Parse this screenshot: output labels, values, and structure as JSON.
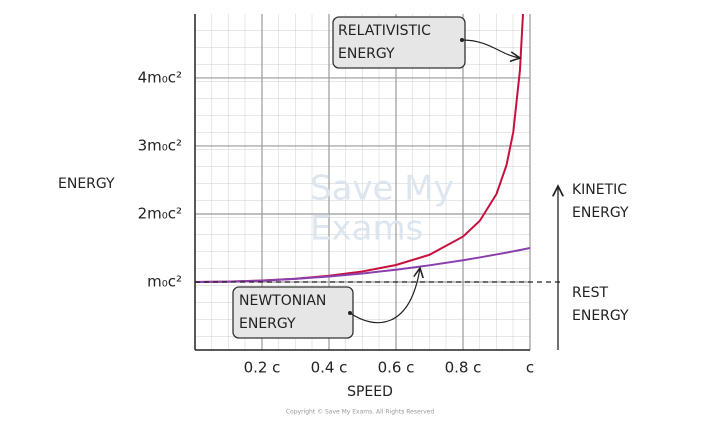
{
  "chart_data": {
    "type": "line",
    "x_label": "SPEED",
    "y_label": "ENERGY",
    "xlim": [
      0,
      1
    ],
    "ylim": [
      0,
      4.94
    ],
    "xticks": [
      {
        "value": 0.2,
        "label": "0.2 c"
      },
      {
        "value": 0.4,
        "label": "0.4 c"
      },
      {
        "value": 0.6,
        "label": "0.6 c"
      },
      {
        "value": 0.8,
        "label": "0.8 c"
      },
      {
        "value": 1,
        "label": "c"
      }
    ],
    "yticks": [
      {
        "value": 1,
        "label": "m₀c²"
      },
      {
        "value": 2,
        "label": "2m₀c²"
      },
      {
        "value": 3,
        "label": "3m₀c²"
      },
      {
        "value": 4,
        "label": "4m₀c²"
      }
    ],
    "grid": true,
    "x": [
      0,
      0.1,
      0.2,
      0.3,
      0.4,
      0.5,
      0.6,
      0.7,
      0.8,
      0.85,
      0.9,
      0.93,
      0.95,
      0.97,
      0.98,
      1
    ],
    "series": [
      {
        "name": "RELATIVISTIC ENERGY",
        "color": "#c8103e",
        "values": [
          1,
          1.005,
          1.021,
          1.048,
          1.091,
          1.155,
          1.25,
          1.4,
          1.667,
          1.898,
          2.294,
          2.72,
          3.203,
          4.113,
          5.025,
          null
        ]
      },
      {
        "name": "NEWTONIAN ENERGY",
        "color": "#8a3fae",
        "values": [
          1,
          1.005,
          1.02,
          1.045,
          1.08,
          1.125,
          1.18,
          1.245,
          1.32,
          1.361,
          1.405,
          1.432,
          1.451,
          1.47,
          1.48,
          1.5
        ]
      }
    ],
    "annotations": {
      "relativistic": [
        "RELATIVISTIC",
        "ENERGY"
      ],
      "newtonian": [
        "NEWTONIAN",
        "ENERGY"
      ],
      "kinetic": [
        "KINETIC",
        "ENERGY"
      ],
      "rest": [
        "REST",
        "ENERGY"
      ]
    },
    "watermark": [
      "Save My",
      "Exams"
    ],
    "copyright": "Copyright © Save My Exams. All Rights Reserved"
  }
}
